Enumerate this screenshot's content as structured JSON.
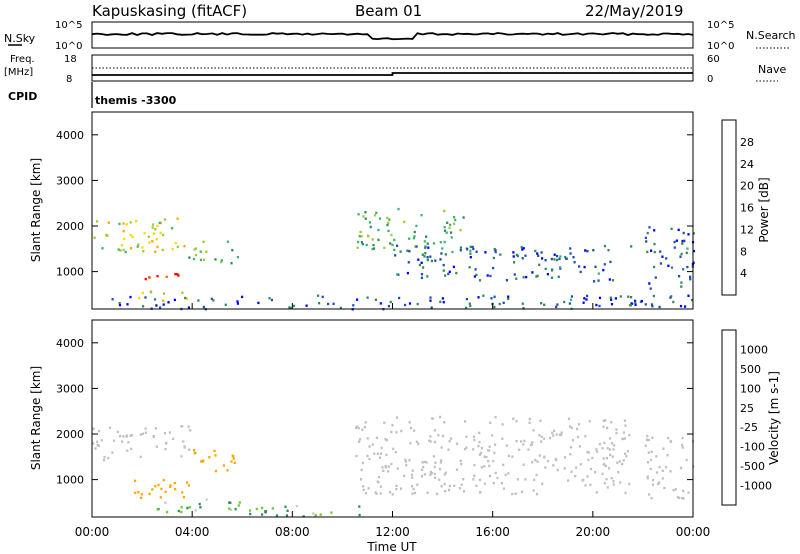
{
  "header": {
    "station": "Kapuskasing (fitACF)",
    "beam": "Beam 01",
    "date": "22/May/2019"
  },
  "summary": {
    "nsky_label": "N.Sky",
    "nsearch_label": "N.Search",
    "noise_ticks": [
      "10^5",
      "10^0"
    ],
    "freq_label": "Freq.",
    "freq_unit": "[MHz]",
    "freq_ticks": [
      "18",
      "8"
    ],
    "nave_label": "Nave",
    "nave_ticks": [
      "60",
      "0"
    ],
    "cpid_label": "CPID",
    "cpid_value": "themis -3300"
  },
  "colors": {
    "power_scale": [
      "#0000ff",
      "#1f4fb0",
      "#2e8b57",
      "#3cb371",
      "#9acd32",
      "#ffd700",
      "#ffa500",
      "#ff6000",
      "#ff0000"
    ],
    "velocity_scale": [
      "#ff0000",
      "#ff6000",
      "#ffa500",
      "#ffd700",
      "#c8c8c8",
      "#66cc33",
      "#2e8b57",
      "#1f4fb0",
      "#0000cc"
    ],
    "ground_scatter": "#c0c0c0"
  },
  "chart_data": [
    {
      "type": "heatmap",
      "name": "power",
      "ylabel": "Slant Range [km]",
      "yticks": [
        1000,
        2000,
        3000,
        4000
      ],
      "ylim": [
        180,
        4500
      ],
      "xlim": [
        0,
        24
      ],
      "colorbar_label": "Power [dB]",
      "colorbar_ticks": [
        4,
        8,
        12,
        16,
        20,
        24,
        28
      ],
      "clim": [
        0,
        32
      ],
      "scatter_regions": [
        {
          "t0": 0.0,
          "t1": 3.9,
          "r0": 1450,
          "r1": 2200,
          "value": 18
        },
        {
          "t0": 2.0,
          "t1": 4.0,
          "r0": 800,
          "r1": 1050,
          "value": 28
        },
        {
          "t0": 3.7,
          "t1": 5.8,
          "r0": 1200,
          "r1": 1700,
          "value": 12
        },
        {
          "t0": 1.5,
          "t1": 3.8,
          "r0": 380,
          "r1": 600,
          "value": 20
        },
        {
          "t0": 0.5,
          "t1": 24.0,
          "r0": 200,
          "r1": 500,
          "value": 6
        },
        {
          "t0": 10.5,
          "t1": 15.0,
          "r0": 1500,
          "r1": 2400,
          "value": 12
        },
        {
          "t0": 12.0,
          "t1": 21.5,
          "r0": 800,
          "r1": 1600,
          "value": 6
        },
        {
          "t0": 22.0,
          "t1": 24.0,
          "r0": 600,
          "r1": 2000,
          "value": 6
        }
      ]
    },
    {
      "type": "heatmap",
      "name": "velocity",
      "ylabel": "Slant Range [km]",
      "yticks": [
        1000,
        2000,
        3000,
        4000
      ],
      "ylim": [
        180,
        4500
      ],
      "xlim": [
        0,
        24
      ],
      "xlabel": "Time UT",
      "xticks": [
        "00:00",
        "04:00",
        "08:00",
        "12:00",
        "16:00",
        "20:00",
        "00:00"
      ],
      "colorbar_label": "Velocity [m s-1]",
      "colorbar_ticks": [
        1000,
        500,
        100,
        25,
        -25,
        -100,
        -500,
        -1000
      ],
      "scatter_regions": [
        {
          "t0": 0.0,
          "t1": 3.9,
          "r0": 1450,
          "r1": 2200,
          "value": 0
        },
        {
          "t0": 1.5,
          "t1": 4.0,
          "r0": 600,
          "r1": 1100,
          "value": -300
        },
        {
          "t0": 3.7,
          "t1": 5.8,
          "r0": 1200,
          "r1": 1700,
          "value": -300
        },
        {
          "t0": 2.0,
          "t1": 6.0,
          "r0": 300,
          "r1": 600,
          "value": 100
        },
        {
          "t0": 6.0,
          "t1": 11.0,
          "r0": 200,
          "r1": 450,
          "value": 100
        },
        {
          "t0": 10.5,
          "t1": 21.5,
          "r0": 700,
          "r1": 2400,
          "value": 0
        },
        {
          "t0": 22.0,
          "t1": 24.0,
          "r0": 600,
          "r1": 2000,
          "value": 0
        }
      ]
    }
  ]
}
